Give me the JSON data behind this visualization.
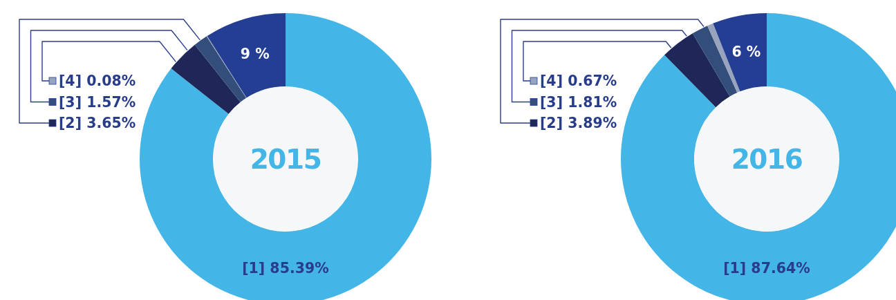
{
  "chart_data": [
    {
      "type": "donut",
      "title": "2015",
      "categories": [
        "[1]",
        "[2]",
        "[3]",
        "[4]",
        null
      ],
      "values": [
        85.39,
        3.65,
        1.57,
        0.08,
        9
      ],
      "colors": [
        "#43b5e6",
        "#1e2757",
        "#344e7b",
        "#98a4bd",
        "#233e92"
      ],
      "value_labels": [
        "85.39%",
        "3.65%",
        "1.57%",
        "0.08%",
        "9 %"
      ],
      "legend": "top left"
    },
    {
      "type": "donut",
      "title": "2016",
      "categories": [
        "[1]",
        "[2]",
        "[3]",
        "[4]",
        null
      ],
      "values": [
        87.64,
        3.89,
        1.81,
        0.67,
        6
      ],
      "colors": [
        "#43b5e6",
        "#1e2757",
        "#344e7b",
        "#98a4bd",
        "#233e92"
      ],
      "value_labels": [
        "87.64%",
        "3.89%",
        "1.81%",
        "0.67%",
        "6 %"
      ],
      "legend": "top left"
    }
  ]
}
